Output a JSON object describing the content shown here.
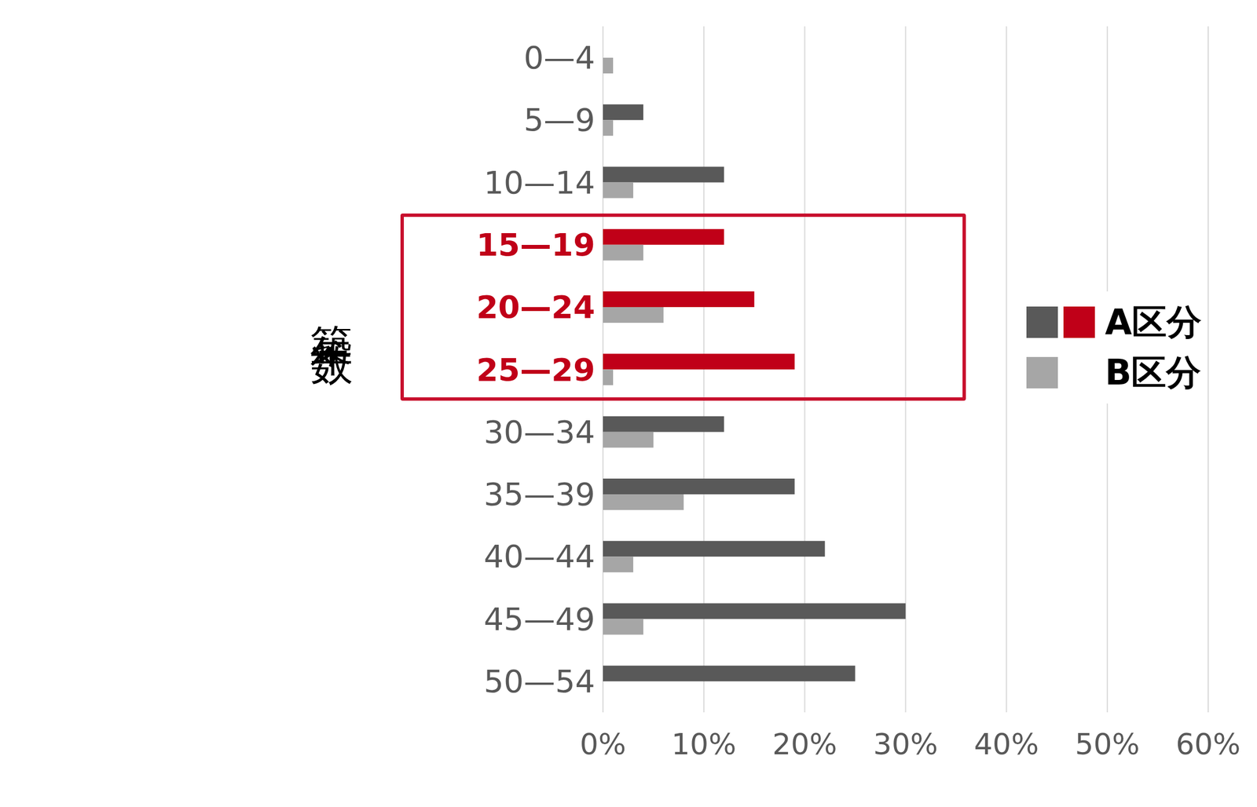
{
  "chart_data": {
    "type": "bar",
    "orientation": "horizontal",
    "ylabel": "築年数",
    "categories": [
      "0—4",
      "5—9",
      "10—14",
      "15—19",
      "20—24",
      "25—29",
      "30—34",
      "35—39",
      "40—44",
      "45—49",
      "50—54"
    ],
    "series": [
      {
        "name": "A区分",
        "color": "#595959",
        "colors": [
          "#595959",
          "#595959",
          "#595959",
          "#c00018",
          "#c00018",
          "#c00018",
          "#595959",
          "#595959",
          "#595959",
          "#595959",
          "#595959"
        ],
        "values": [
          0,
          4,
          12,
          12,
          15,
          19,
          12,
          19,
          22,
          30,
          25
        ]
      },
      {
        "name": "B区分",
        "color": "#a6a6a6",
        "values": [
          1,
          1,
          3,
          4,
          6,
          1,
          5,
          8,
          3,
          4,
          0
        ]
      }
    ],
    "xlim": [
      0,
      60
    ],
    "xticks": [
      {
        "value": 0,
        "label": "0%"
      },
      {
        "value": 10,
        "label": "10%"
      },
      {
        "value": 20,
        "label": "20%"
      },
      {
        "value": 30,
        "label": "30%"
      },
      {
        "value": 40,
        "label": "40%"
      },
      {
        "value": 50,
        "label": "50%"
      },
      {
        "value": 60,
        "label": "60%"
      }
    ],
    "grid": true,
    "legend": "right"
  }
}
